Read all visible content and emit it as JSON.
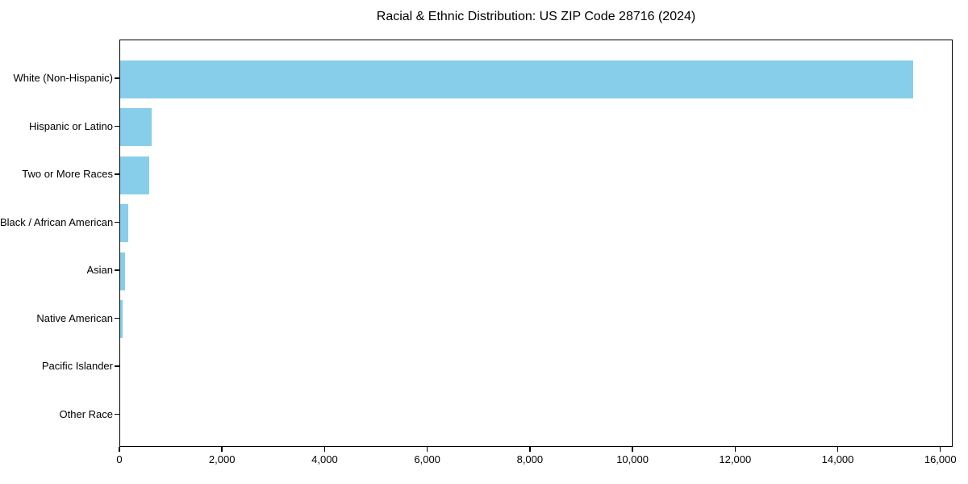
{
  "chart_data": {
    "type": "bar",
    "orientation": "horizontal",
    "title": "Racial & Ethnic Distribution: US ZIP Code 28716 (2024)",
    "categories": [
      "White (Non-Hispanic)",
      "Hispanic or Latino",
      "Two or More Races",
      "Black / African American",
      "Asian",
      "Native American",
      "Pacific Islander",
      "Other Race"
    ],
    "values": [
      15460,
      620,
      570,
      155,
      95,
      50,
      0,
      0
    ],
    "xlabel": "",
    "ylabel": "",
    "xlim": [
      0,
      16240
    ],
    "xticks": [
      0,
      2000,
      4000,
      6000,
      8000,
      10000,
      12000,
      14000,
      16000
    ],
    "xtick_labels": [
      "0",
      "2,000",
      "4,000",
      "6,000",
      "8,000",
      "10,000",
      "12,000",
      "14,000",
      "16,000"
    ],
    "bar_color": "#87CEEB",
    "axis_color": "#000000",
    "background_color": "#ffffff",
    "grid": false,
    "legend": null
  }
}
